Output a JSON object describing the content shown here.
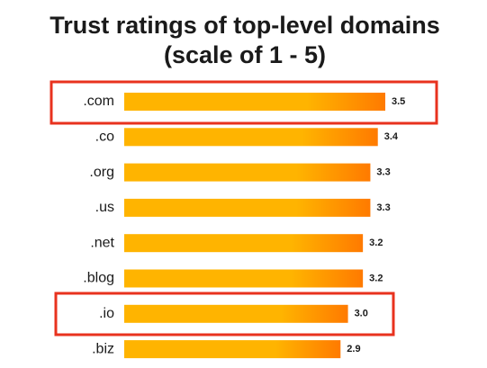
{
  "chart_data": {
    "type": "bar",
    "orientation": "horizontal",
    "title": "Trust ratings of top-level domains",
    "subtitle": "(scale of 1 - 5)",
    "categories": [
      ".com",
      ".co",
      ".org",
      ".us",
      ".net",
      ".blog",
      ".io",
      ".biz"
    ],
    "values": [
      3.5,
      3.4,
      3.3,
      3.3,
      3.2,
      3.2,
      3.0,
      2.9
    ],
    "value_labels": [
      "3.5",
      "3.4",
      "3.3",
      "3.3",
      "3.2",
      "3.2",
      "3.0",
      "2.9"
    ],
    "color": "#ffb400",
    "color_end": "#ff7a00"
  }
}
